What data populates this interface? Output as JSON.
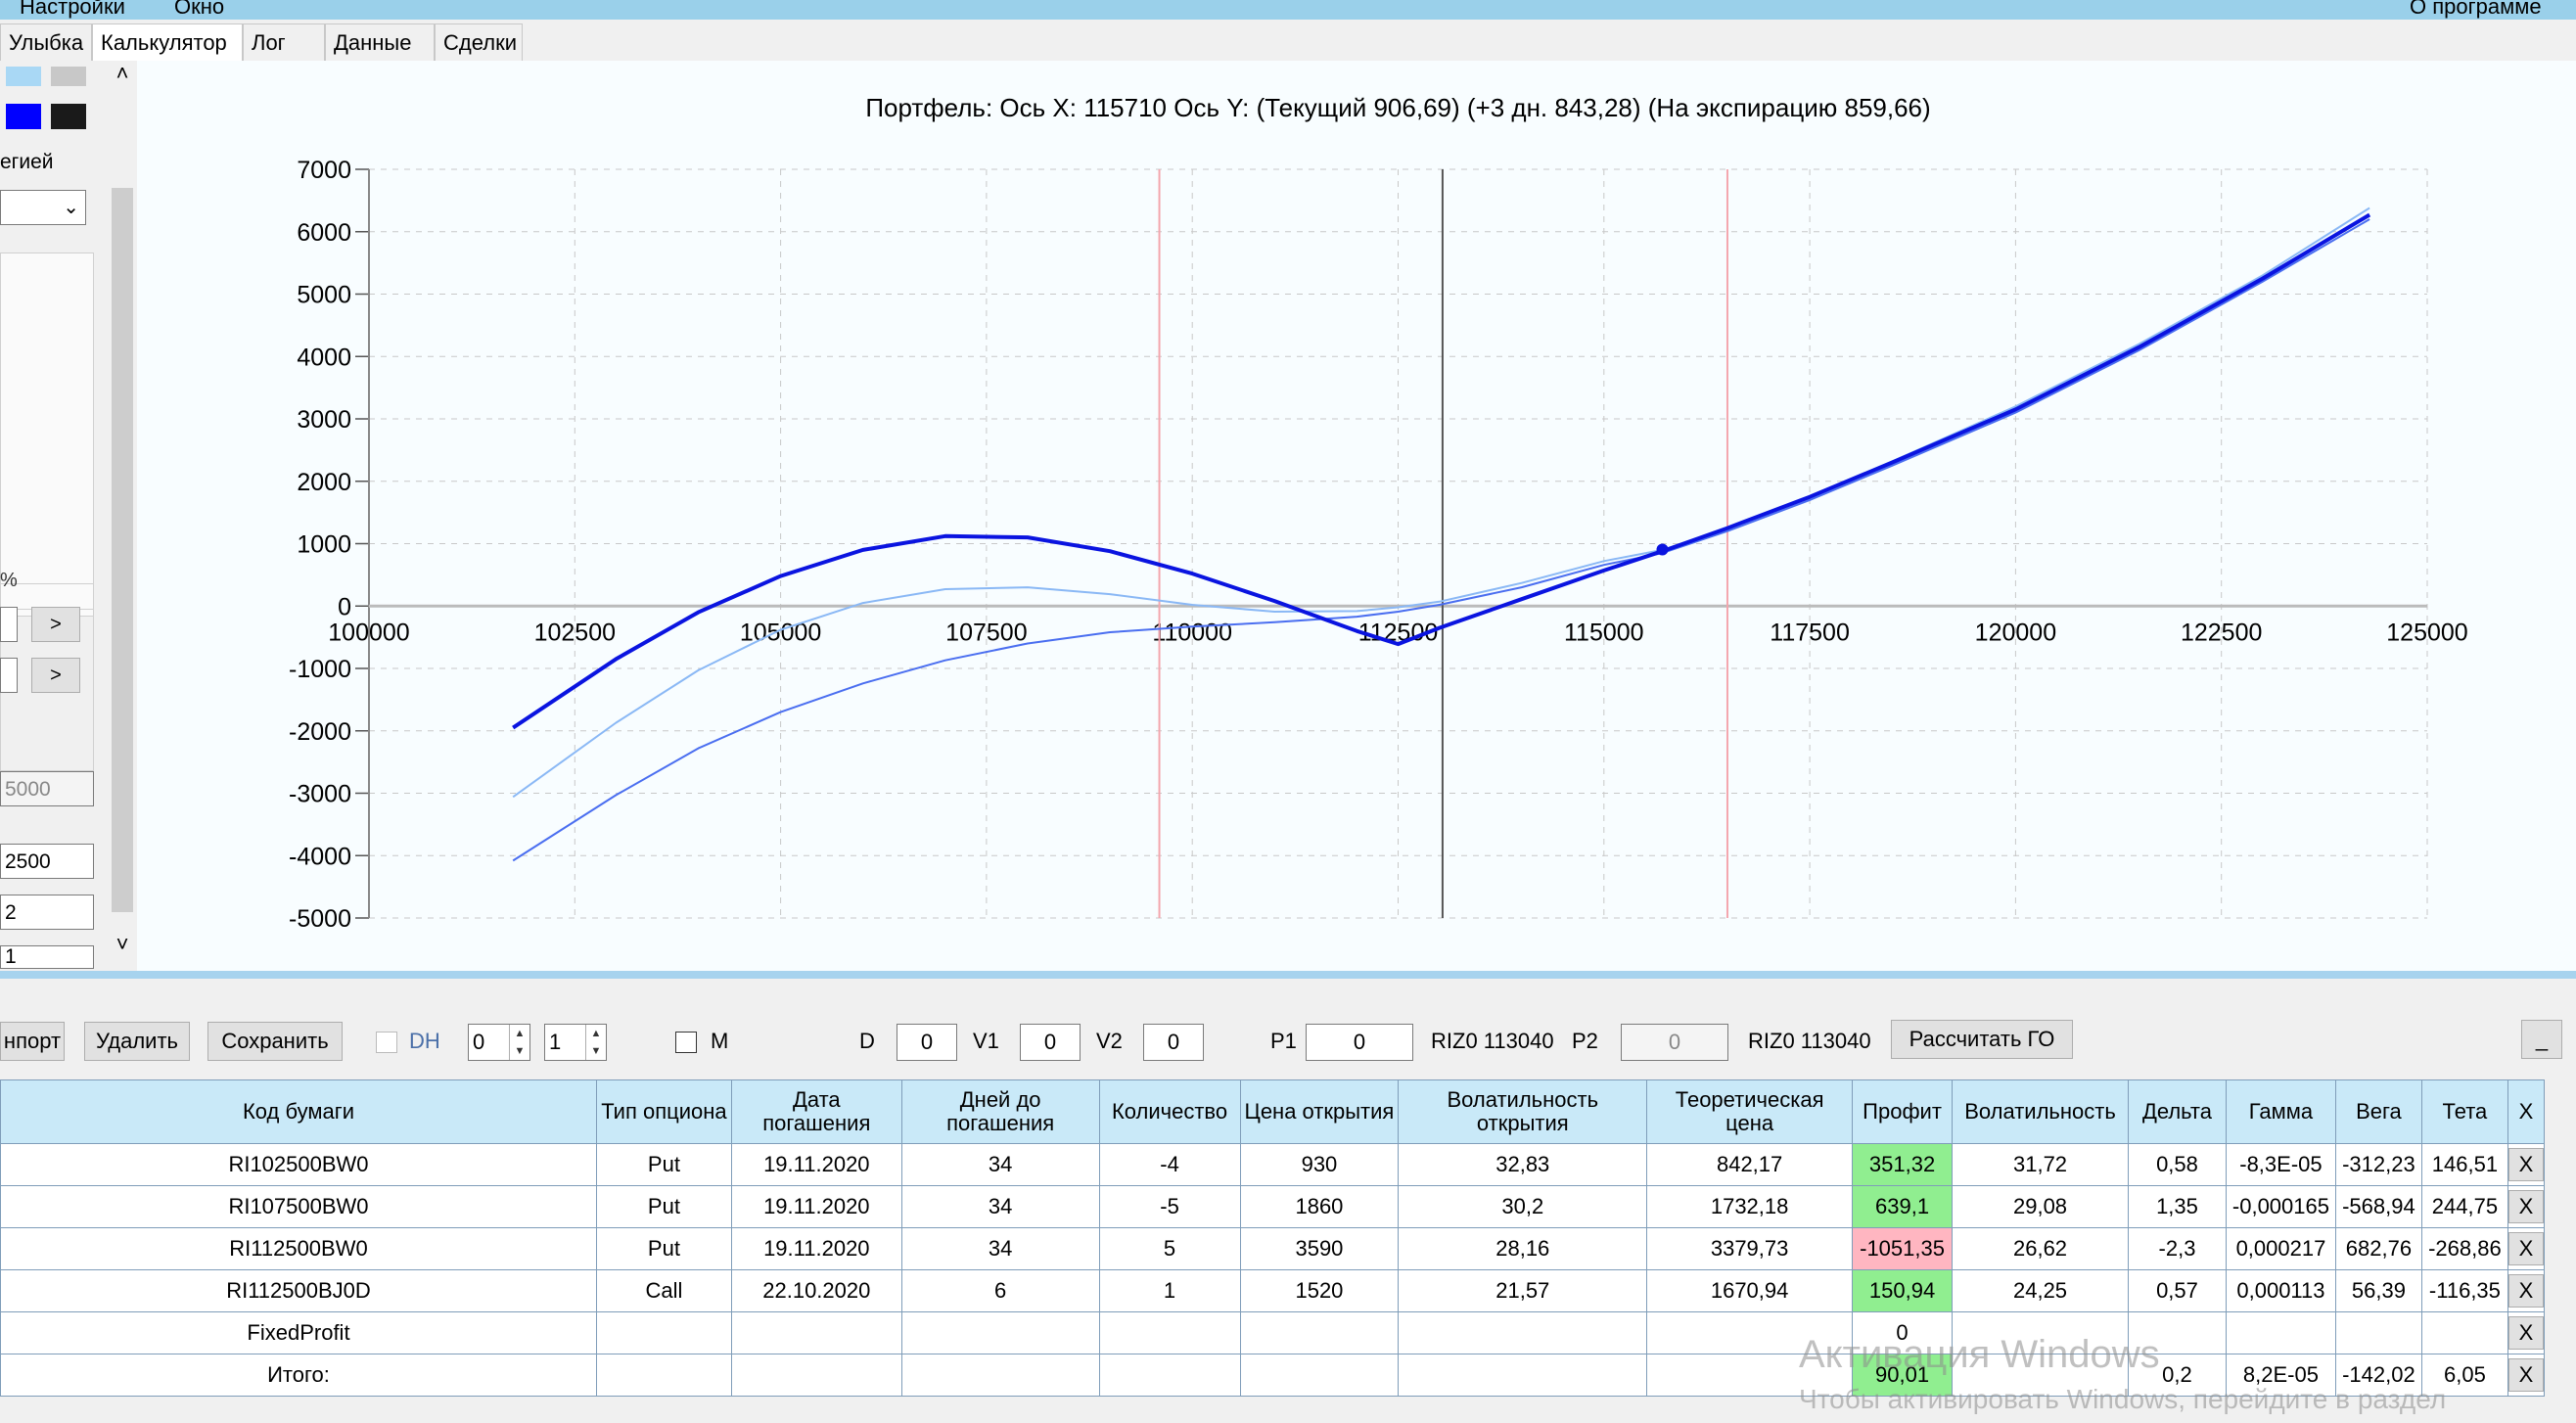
{
  "menu": {
    "settings": "Настройки",
    "window": "Окно",
    "about": "О программе"
  },
  "tabs": [
    {
      "label": "Улыбка",
      "active": false
    },
    {
      "label": "Калькулятор",
      "active": true
    },
    {
      "label": "Лог",
      "active": false
    },
    {
      "label": "Данные",
      "active": false
    },
    {
      "label": "Сделки",
      "active": false
    }
  ],
  "left_panel": {
    "strategy_label": "егией",
    "percent_label": "%",
    "next1": ">",
    "next2": ">",
    "field_5000": "5000",
    "field_2500": "2500",
    "field_2": "2",
    "field_1": "1",
    "swatches": [
      "#a9d8f5",
      "#c8c8c8",
      "#0000ff",
      "#1a1a1a"
    ],
    "scroll_up": "˄",
    "scroll_down": "˅"
  },
  "chart_data": {
    "type": "line",
    "title": "Портфель: Ось X: 115710 Ось Y:  (Текущий 906,69)  (+3 дн. 843,28)  (На экспирацию 859,66)",
    "xlim": [
      100000,
      125000
    ],
    "ylim": [
      -5000,
      7000
    ],
    "x_ticks": [
      "100000",
      "102500",
      "105000",
      "107500",
      "110000",
      "112500",
      "115000",
      "117500",
      "120000",
      "122500",
      "125000"
    ],
    "y_ticks": [
      "7000",
      "6000",
      "5000",
      "4000",
      "3000",
      "2000",
      "1000",
      "0",
      "-1000",
      "-2000",
      "-3000",
      "-4000",
      "-5000"
    ],
    "grid": true,
    "vertical_markers": [
      {
        "x": 109600,
        "color": "#f4a6ae"
      },
      {
        "x": 113040,
        "color": "#555555"
      },
      {
        "x": 116500,
        "color": "#f4a6ae"
      }
    ],
    "current_point": {
      "x": 115710,
      "y": 906.69
    },
    "series": [
      {
        "color": "#0a14e0",
        "width": 4,
        "x": [
          101750,
          103000,
          104000,
          105000,
          106000,
          107000,
          108000,
          109000,
          110000,
          111000,
          112000,
          112500,
          113000,
          114000,
          115000,
          115710,
          116500,
          117500,
          118500,
          120000,
          121500,
          123000,
          124300
        ],
        "y": [
          -1950,
          -850,
          -100,
          480,
          900,
          1120,
          1100,
          880,
          520,
          80,
          -400,
          -610,
          -350,
          110,
          570,
          880,
          1250,
          1750,
          2300,
          3150,
          4150,
          5250,
          6270
        ]
      },
      {
        "color": "#4a6ef0",
        "width": 2,
        "x": [
          101750,
          103000,
          104000,
          105000,
          106000,
          107000,
          108000,
          109000,
          110000,
          111000,
          112000,
          112500,
          113000,
          114000,
          115000,
          115710,
          116500,
          117500,
          118500,
          120000,
          121500,
          123000,
          124300
        ],
        "y": [
          -4080,
          -3030,
          -2280,
          -1700,
          -1240,
          -870,
          -600,
          -420,
          -330,
          -260,
          -170,
          -90,
          20,
          300,
          660,
          850,
          1200,
          1700,
          2250,
          3100,
          4100,
          5200,
          6200
        ]
      },
      {
        "color": "#8ab8f5",
        "width": 2,
        "x": [
          101750,
          103000,
          104000,
          105000,
          106000,
          107000,
          108000,
          109000,
          110000,
          111000,
          112000,
          112500,
          113000,
          114000,
          115000,
          115710,
          116500,
          117500,
          118500,
          120000,
          121500,
          123000,
          124300
        ],
        "y": [
          -3060,
          -1870,
          -1030,
          -380,
          50,
          270,
          300,
          190,
          20,
          -90,
          -80,
          -20,
          70,
          370,
          720,
          900,
          1250,
          1760,
          2320,
          3200,
          4200,
          5300,
          6380
        ]
      }
    ]
  },
  "toolbar": {
    "import": "нпорт",
    "delete": "Удалить",
    "save": "Сохранить",
    "dh": "DH",
    "spin1": "0",
    "spin2": "1",
    "m": "M",
    "d_label": "D",
    "d_value": "0",
    "v1_label": "V1",
    "v1_value": "0",
    "v2_label": "V2",
    "v2_value": "0",
    "p1_label": "P1",
    "p1_value": "0",
    "riz1": "RIZ0 113040",
    "p2_label": "P2",
    "p2_value": "0",
    "riz2": "RIZ0 113040",
    "calc_go": "Рассчитать ГО",
    "minimize": "_"
  },
  "grid": {
    "headers": [
      "Код бумаги",
      "Тип опциона",
      "Дата погашения",
      "Дней до погашения",
      "Количество",
      "Цена открытия",
      "Волатильность открытия",
      "Теоретическая цена",
      "Профит",
      "Волатильность",
      "Дельта",
      "Гамма",
      "Вега",
      "Тета",
      "X"
    ],
    "rows": [
      [
        "RI102500BW0",
        "Put",
        "19.11.2020",
        "34",
        "-4",
        "930",
        "32,83",
        "842,17",
        "351,32",
        "31,72",
        "0,58",
        "-8,3E-05",
        "-312,23",
        "146,51",
        "X"
      ],
      [
        "RI107500BW0",
        "Put",
        "19.11.2020",
        "34",
        "-5",
        "1860",
        "30,2",
        "1732,18",
        "639,1",
        "29,08",
        "1,35",
        "-0,000165",
        "-568,94",
        "244,75",
        "X"
      ],
      [
        "RI112500BW0",
        "Put",
        "19.11.2020",
        "34",
        "5",
        "3590",
        "28,16",
        "3379,73",
        "-1051,35",
        "26,62",
        "-2,3",
        "0,000217",
        "682,76",
        "-268,86",
        "X"
      ],
      [
        "RI112500BJ0D",
        "Call",
        "22.10.2020",
        "6",
        "1",
        "1520",
        "21,57",
        "1670,94",
        "150,94",
        "24,25",
        "0,57",
        "0,000113",
        "56,39",
        "-116,35",
        "X"
      ],
      [
        "FixedProfit",
        "",
        "",
        "",
        "",
        "",
        "",
        "",
        "0",
        "",
        "",
        "",
        "",
        "",
        "X"
      ],
      [
        "Итого:",
        "",
        "",
        "",
        "",
        "",
        "",
        "",
        "90,01",
        "",
        "0,2",
        "8,2E-05",
        "-142,02",
        "6,05",
        "X"
      ]
    ],
    "profit_status": [
      "pos",
      "pos",
      "neg",
      "pos",
      "",
      "pos"
    ]
  },
  "watermark": {
    "line1": "Активация Windows",
    "line2": "Чтобы активировать Windows, перейдите в раздел"
  }
}
